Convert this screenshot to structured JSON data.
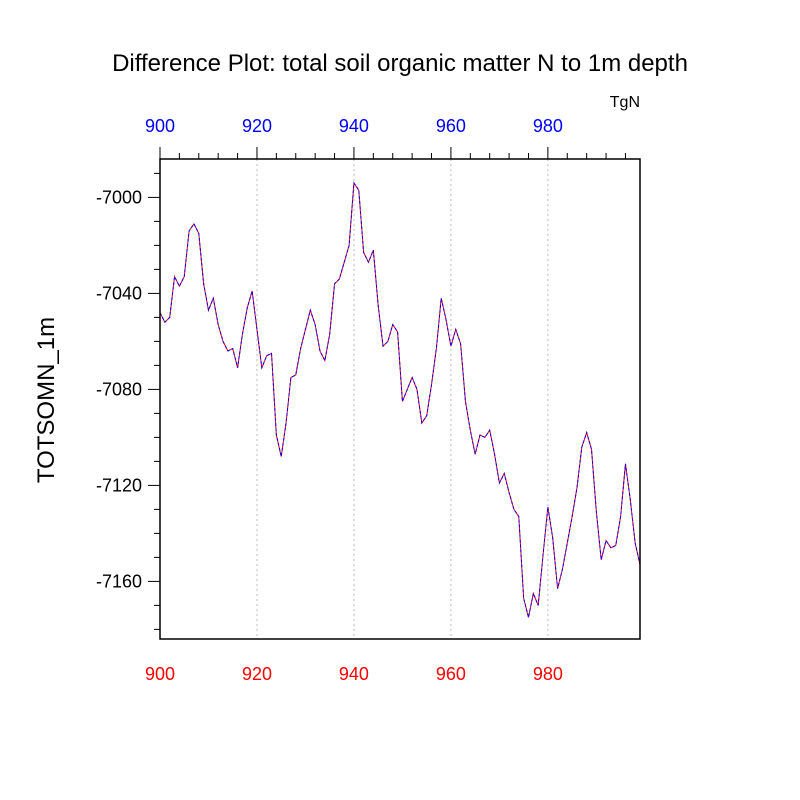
{
  "chart_data": {
    "type": "line",
    "title": "Difference Plot: total soil organic matter N to 1m depth",
    "units": "TgN",
    "ylabel": "TOTSOMN_1m",
    "xlabel": "",
    "xlim": [
      900,
      999
    ],
    "ylim": [
      -7184,
      -6984
    ],
    "x_ticks": [
      900,
      920,
      940,
      960,
      980
    ],
    "x_tick_labels": [
      "900",
      "920",
      "940",
      "960",
      "980"
    ],
    "y_ticks": [
      -7000,
      -7040,
      -7080,
      -7120,
      -7160
    ],
    "y_tick_labels": [
      "-7000",
      "-7040",
      "-7080",
      "-7120",
      "-7160"
    ],
    "grid": "vertical dotted lines at major x ticks",
    "colors": {
      "line_primary": "#ff0000",
      "line_secondary": "#0000ff",
      "bottom_axis_labels": "#ff0000",
      "top_axis_labels": "#0000ff",
      "grid": "#bbbbbb"
    },
    "series": [
      {
        "x": [
          900,
          901,
          902,
          903,
          904,
          905,
          906,
          907,
          908,
          909,
          910,
          911,
          912,
          913,
          914,
          915,
          916,
          917,
          918,
          919,
          920,
          921,
          922,
          923,
          924,
          925,
          926,
          927,
          928,
          929,
          930,
          931,
          932,
          933,
          934,
          935,
          936,
          937,
          938,
          939,
          940,
          941,
          942,
          943,
          944,
          945,
          946,
          947,
          948,
          949,
          950,
          951,
          952,
          953,
          954,
          955,
          956,
          957,
          958,
          959,
          960,
          961,
          962,
          963,
          964,
          965,
          966,
          967,
          968,
          969,
          970,
          971,
          972,
          973,
          974,
          975,
          976,
          977,
          978,
          979,
          980,
          981,
          982,
          983,
          984,
          985,
          986,
          987,
          988,
          989,
          990,
          991,
          992,
          993,
          994,
          995,
          996,
          997,
          998,
          999
        ],
        "values": [
          -7048,
          -7052,
          -7050,
          -7033,
          -7037,
          -7033,
          -7014,
          -7011,
          -7015,
          -7036,
          -7047,
          -7042,
          -7053,
          -7060,
          -7064,
          -7063,
          -7071,
          -7057,
          -7046,
          -7039,
          -7055,
          -7071,
          -7066,
          -7065,
          -7099,
          -7108,
          -7094,
          -7075,
          -7074,
          -7063,
          -7055,
          -7047,
          -7053,
          -7064,
          -7068,
          -7057,
          -7036,
          -7034,
          -7027,
          -7020,
          -6994,
          -6997,
          -7023,
          -7027,
          -7022,
          -7045,
          -7062,
          -7060,
          -7053,
          -7056,
          -7085,
          -7080,
          -7075,
          -7080,
          -7094,
          -7091,
          -7078,
          -7063,
          -7042,
          -7051,
          -7062,
          -7055,
          -7061,
          -7085,
          -7097,
          -7107,
          -7099,
          -7100,
          -7097,
          -7107,
          -7119,
          -7115,
          -7123,
          -7130,
          -7133,
          -7167,
          -7175,
          -7165,
          -7170,
          -7149,
          -7129,
          -7142,
          -7163,
          -7155,
          -7144,
          -7133,
          -7121,
          -7104,
          -7098,
          -7105,
          -7131,
          -7151,
          -7143,
          -7146,
          -7145,
          -7133,
          -7111,
          -7126,
          -7144,
          -7153
        ]
      }
    ]
  }
}
